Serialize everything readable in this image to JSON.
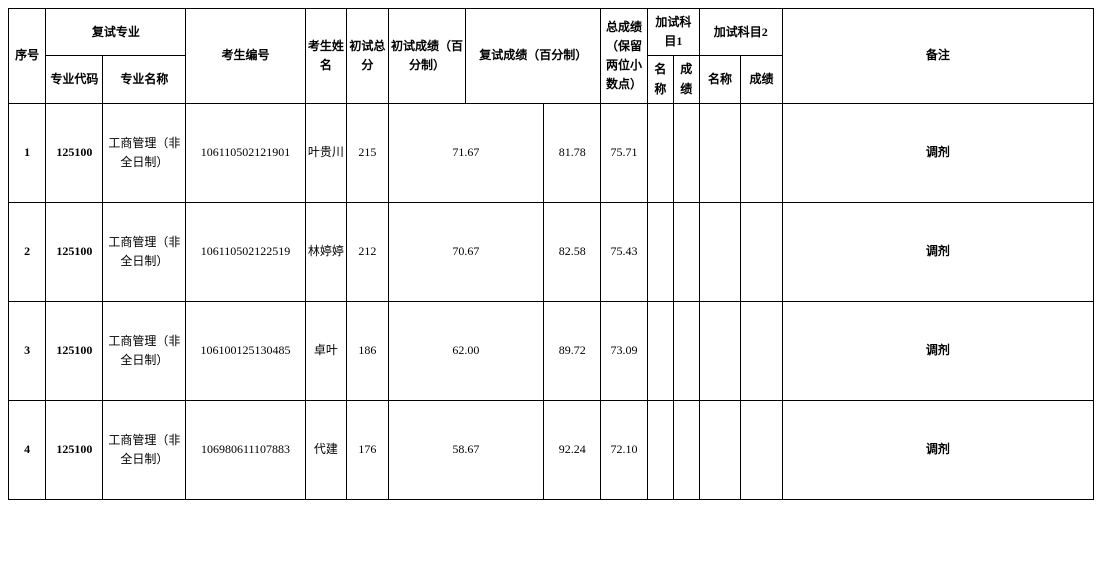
{
  "headers": {
    "seq": "序号",
    "retest_major": "复试专业",
    "major_code": "专业代码",
    "major_name": "专业名称",
    "exam_id": "考生编号",
    "cand_name": "考生姓名",
    "prelim_total": "初试总分",
    "prelim_pct": "初试成绩（百分制）",
    "retest_pct": "复试成绩（百分制）",
    "total_score": "总成绩（保留两位小数点）",
    "add1": "加试科目1",
    "add2": "加试科目2",
    "sub_name": "名称",
    "sub_score": "成绩",
    "note": "备注"
  },
  "rows": [
    {
      "seq": "1",
      "code": "125100",
      "major": "工商管理（非全日制）",
      "exid": "106110502121901",
      "name": "叶贵川",
      "pre": "215",
      "prepct": "71.67",
      "repct": "81.78",
      "total": "75.71",
      "a1n": "",
      "a1s": "",
      "a2n": "",
      "a2s": "",
      "note": "调剂"
    },
    {
      "seq": "2",
      "code": "125100",
      "major": "工商管理（非全日制）",
      "exid": "106110502122519",
      "name": "林婷婷",
      "pre": "212",
      "prepct": "70.67",
      "repct": "82.58",
      "total": "75.43",
      "a1n": "",
      "a1s": "",
      "a2n": "",
      "a2s": "",
      "note": "调剂"
    },
    {
      "seq": "3",
      "code": "125100",
      "major": "工商管理（非全日制）",
      "exid": "106100125130485",
      "name": "卓叶",
      "pre": "186",
      "prepct": "62.00",
      "repct": "89.72",
      "total": "73.09",
      "a1n": "",
      "a1s": "",
      "a2n": "",
      "a2s": "",
      "note": "调剂"
    },
    {
      "seq": "4",
      "code": "125100",
      "major": "工商管理（非全日制）",
      "exid": "106980611107883",
      "name": "代建",
      "pre": "176",
      "prepct": "58.67",
      "repct": "92.24",
      "total": "72.10",
      "a1n": "",
      "a1s": "",
      "a2n": "",
      "a2s": "",
      "note": "调剂"
    }
  ]
}
